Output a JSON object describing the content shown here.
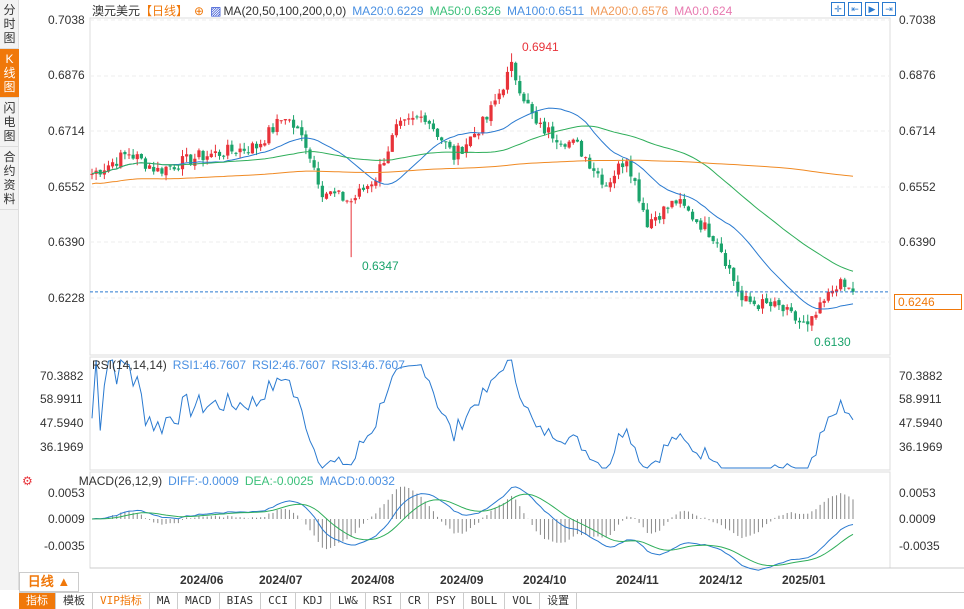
{
  "sidebar": {
    "tabs": [
      {
        "label": "分时图"
      },
      {
        "label": "K线图",
        "active": true
      },
      {
        "label": "闪电图"
      },
      {
        "label": "合约资料"
      }
    ]
  },
  "header": {
    "symbol": "澳元美元",
    "period_tag": "【日线】",
    "ma_label": "MA(20,50,100,200,0,0)",
    "ma20": "MA20:0.6229",
    "ma50": "MA50:0.6326",
    "ma100": "MA100:0.6511",
    "ma200": "MA200:0.6576",
    "ma0": "MA0:0.624"
  },
  "price_axis": [
    "0.7038",
    "0.6876",
    "0.6714",
    "0.6552",
    "0.6390",
    "0.6228"
  ],
  "current_price": "0.6246",
  "annotations": {
    "high": "0.6941",
    "low1": "0.6347",
    "low2": "0.6130"
  },
  "rsi": {
    "label": "RSI(14,14,14)",
    "rsi1": "RSI1:46.7607",
    "rsi2": "RSI2:46.7607",
    "rsi3": "RSI3:46.7607",
    "axis": [
      "70.3882",
      "58.9911",
      "47.5940",
      "36.1969"
    ]
  },
  "macd": {
    "label": "MACD(26,12,9)",
    "diff": "DIFF:-0.0009",
    "dea": "DEA:-0.0025",
    "macd": "MACD:0.0032",
    "axis": [
      "0.0053",
      "0.0009",
      "-0.0035"
    ]
  },
  "dates": [
    "2024/06",
    "2024/07",
    "2024/08",
    "2024/09",
    "2024/10",
    "2024/11",
    "2024/12",
    "2025/01"
  ],
  "period_button": "日线 ▲",
  "bottom_tabs": [
    "指标",
    "模板",
    "VIP指标",
    "MA",
    "MACD",
    "BIAS",
    "CCI",
    "KDJ",
    "LW&",
    "RSI",
    "CR",
    "PSY",
    "BOLL",
    "VOL",
    "设置"
  ],
  "colors": {
    "up": "#e8333a",
    "down": "#1aa36b",
    "ma20": "#2a7ad0",
    "ma50": "#2fae5a",
    "ma200": "#f08a24",
    "accent": "#f0780a"
  },
  "chart_data": {
    "type": "candlestick",
    "anchors": [
      [
        0,
        0.659
      ],
      [
        9,
        0.665
      ],
      [
        16,
        0.66
      ],
      [
        26,
        0.664
      ],
      [
        40,
        0.667
      ],
      [
        47,
        0.676
      ],
      [
        52,
        0.668
      ],
      [
        56,
        0.654
      ],
      [
        63,
        0.651
      ],
      [
        69,
        0.658
      ],
      [
        74,
        0.672
      ],
      [
        81,
        0.676
      ],
      [
        88,
        0.664
      ],
      [
        96,
        0.675
      ],
      [
        102,
        0.69
      ],
      [
        108,
        0.673
      ],
      [
        118,
        0.667
      ],
      [
        125,
        0.656
      ],
      [
        130,
        0.664
      ],
      [
        135,
        0.645
      ],
      [
        142,
        0.651
      ],
      [
        152,
        0.64
      ],
      [
        158,
        0.622
      ],
      [
        167,
        0.62
      ],
      [
        174,
        0.614
      ],
      [
        181,
        0.627
      ],
      [
        185,
        0.6246
      ]
    ],
    "high": 0.6941,
    "low": 0.613,
    "ylim": [
      0.613,
      0.7038
    ]
  }
}
